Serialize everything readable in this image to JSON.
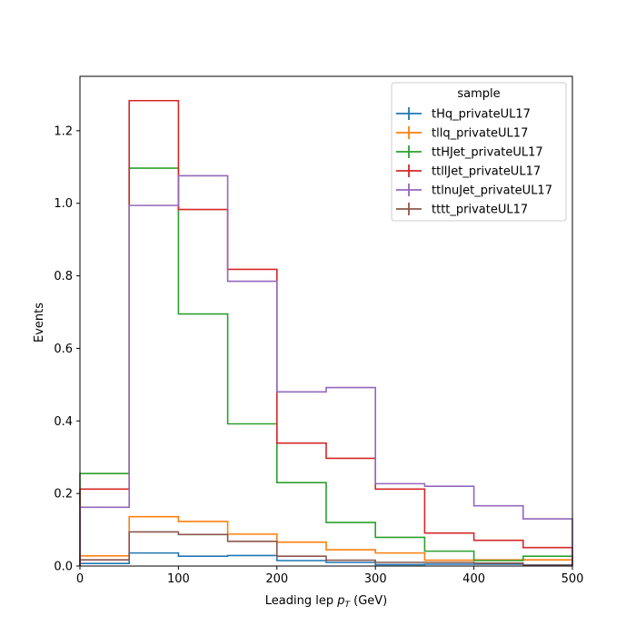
{
  "chart_data": {
    "type": "step-histogram",
    "xlabel_prefix": "Leading lep ",
    "xlabel_var": "p",
    "xlabel_sub": "T",
    "xlabel_suffix": " (GeV)",
    "ylabel": "Events",
    "xlim": [
      0,
      500
    ],
    "ylim": [
      0,
      1.35
    ],
    "x_ticks": [
      0,
      100,
      200,
      300,
      400,
      500
    ],
    "y_ticks": [
      0.0,
      0.2,
      0.4,
      0.6,
      0.8,
      1.0,
      1.2
    ],
    "x_tick_labels": [
      "0",
      "100",
      "200",
      "300",
      "400",
      "500"
    ],
    "y_tick_labels": [
      "0.0",
      "0.2",
      "0.4",
      "0.6",
      "0.8",
      "1.0",
      "1.2"
    ],
    "bin_edges": [
      0,
      50,
      100,
      150,
      200,
      250,
      300,
      350,
      400,
      450,
      500
    ],
    "legend_title": "sample",
    "legend_position": "top-right",
    "grid": false,
    "series": [
      {
        "name": "tHq_privateUL17",
        "color": "#1f77b4",
        "values": [
          0.007,
          0.036,
          0.027,
          0.029,
          0.015,
          0.01,
          0.004,
          0.005,
          0.005,
          0.003
        ]
      },
      {
        "name": "tllq_privateUL17",
        "color": "#ff7f0e",
        "values": [
          0.028,
          0.136,
          0.123,
          0.088,
          0.066,
          0.045,
          0.036,
          0.016,
          0.017,
          0.017
        ]
      },
      {
        "name": "ttHJet_privateUL17",
        "color": "#2ca02c",
        "values": [
          0.255,
          1.097,
          0.695,
          0.392,
          0.23,
          0.12,
          0.079,
          0.041,
          0.015,
          0.027
        ]
      },
      {
        "name": "ttllJet_privateUL17",
        "color": "#d62728",
        "values": [
          0.212,
          1.283,
          0.983,
          0.818,
          0.339,
          0.297,
          0.212,
          0.091,
          0.071,
          0.051
        ]
      },
      {
        "name": "ttlnuJet_privateUL17",
        "color": "#9467bd",
        "values": [
          0.162,
          0.994,
          1.076,
          0.785,
          0.48,
          0.492,
          0.227,
          0.22,
          0.166,
          0.13
        ]
      },
      {
        "name": "tttt_privateUL17",
        "color": "#8c564b",
        "values": [
          0.017,
          0.094,
          0.087,
          0.068,
          0.027,
          0.016,
          0.01,
          0.01,
          0.008,
          0.002
        ]
      }
    ]
  }
}
